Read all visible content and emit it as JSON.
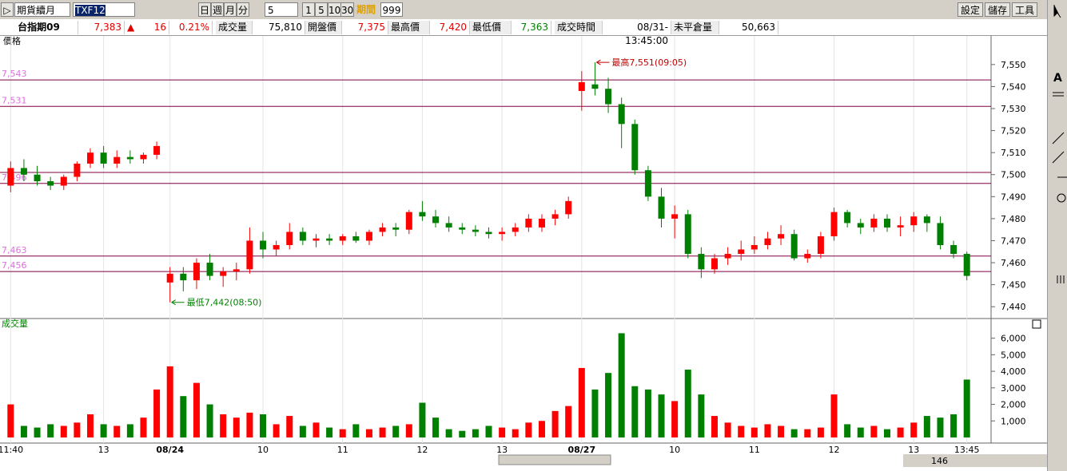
{
  "toolbar": {
    "product": "期貨續月",
    "symbol": "TXF12",
    "periods": [
      "日",
      "週",
      "月",
      "分"
    ],
    "minutes": "5",
    "minute_buttons": [
      "1",
      "5",
      "10",
      "30"
    ],
    "range_label": "期間",
    "range_value": "999",
    "buttons": [
      "設定",
      "儲存",
      "工具"
    ]
  },
  "quote": {
    "name": "台指期09",
    "last": "7,383",
    "arrow": "▲",
    "change": "16",
    "change_pct": "0.21%",
    "fields": [
      [
        "成交量",
        "75,810"
      ],
      [
        "開盤價",
        "7,375"
      ],
      [
        "最高價",
        "7,420"
      ],
      [
        "最低價",
        "7,363"
      ],
      [
        "成交時間",
        "08/31-13:45:00"
      ],
      [
        "未平倉量",
        "50,663"
      ]
    ]
  },
  "footer": {
    "count": "146"
  },
  "chart_data": {
    "type": "candlestick",
    "price_label": "價格",
    "volume_label": "成交量",
    "up_color": "#ff0000",
    "down_color": "#008000",
    "categories": [
      "11:40",
      null,
      null,
      null,
      null,
      null,
      null,
      "13",
      null,
      null,
      null,
      null,
      "08/24",
      null,
      null,
      null,
      null,
      null,
      null,
      "10",
      null,
      null,
      null,
      null,
      null,
      "11",
      null,
      null,
      null,
      null,
      null,
      "12",
      null,
      null,
      null,
      null,
      null,
      "13",
      null,
      null,
      null,
      null,
      null,
      "08/27",
      null,
      null,
      null,
      null,
      null,
      null,
      "10",
      null,
      null,
      null,
      null,
      null,
      "11",
      null,
      null,
      null,
      null,
      null,
      "12",
      null,
      null,
      null,
      null,
      null,
      "13",
      null,
      null,
      null,
      "13:45"
    ],
    "ohlc": [
      [
        7495,
        7506,
        7492,
        7503
      ],
      [
        7503,
        7507,
        7497,
        7500
      ],
      [
        7500,
        7504,
        7495,
        7497
      ],
      [
        7497,
        7499,
        7493,
        7495
      ],
      [
        7495,
        7500,
        7493,
        7499
      ],
      [
        7499,
        7506,
        7497,
        7505
      ],
      [
        7505,
        7512,
        7503,
        7510
      ],
      [
        7510,
        7513,
        7503,
        7505
      ],
      [
        7505,
        7511,
        7503,
        7508
      ],
      [
        7508,
        7511,
        7505,
        7507
      ],
      [
        7507,
        7510,
        7505,
        7509
      ],
      [
        7509,
        7515,
        7507,
        7513
      ],
      [
        7451,
        7458,
        7442,
        7455
      ],
      [
        7455,
        7458,
        7447,
        7452
      ],
      [
        7452,
        7462,
        7448,
        7460
      ],
      [
        7460,
        7464,
        7452,
        7454
      ],
      [
        7454,
        7458,
        7449,
        7456
      ],
      [
        7456,
        7460,
        7452,
        7457
      ],
      [
        7457,
        7476,
        7455,
        7470
      ],
      [
        7470,
        7474,
        7462,
        7466
      ],
      [
        7466,
        7470,
        7463,
        7468
      ],
      [
        7468,
        7478,
        7466,
        7474
      ],
      [
        7474,
        7476,
        7468,
        7470
      ],
      [
        7470,
        7473,
        7467,
        7471
      ],
      [
        7471,
        7473,
        7468,
        7470
      ],
      [
        7470,
        7473,
        7468,
        7472
      ],
      [
        7472,
        7474,
        7469,
        7470
      ],
      [
        7470,
        7475,
        7468,
        7474
      ],
      [
        7474,
        7478,
        7472,
        7476
      ],
      [
        7476,
        7478,
        7472,
        7475
      ],
      [
        7475,
        7484,
        7473,
        7483
      ],
      [
        7483,
        7488,
        7479,
        7481
      ],
      [
        7481,
        7484,
        7476,
        7478
      ],
      [
        7478,
        7481,
        7474,
        7476
      ],
      [
        7476,
        7478,
        7473,
        7475
      ],
      [
        7475,
        7477,
        7472,
        7474
      ],
      [
        7474,
        7476,
        7471,
        7473
      ],
      [
        7473,
        7476,
        7470,
        7474
      ],
      [
        7474,
        7478,
        7472,
        7476
      ],
      [
        7476,
        7482,
        7474,
        7480
      ],
      [
        7476,
        7482,
        7474,
        7480
      ],
      [
        7480,
        7484,
        7477,
        7482
      ],
      [
        7482,
        7490,
        7480,
        7488
      ],
      [
        7538,
        7547,
        7529,
        7542
      ],
      [
        7541,
        7551,
        7536,
        7539
      ],
      [
        7539,
        7544,
        7528,
        7532
      ],
      [
        7532,
        7535,
        7512,
        7523
      ],
      [
        7523,
        7525,
        7500,
        7502
      ],
      [
        7502,
        7504,
        7488,
        7490
      ],
      [
        7490,
        7494,
        7476,
        7480
      ],
      [
        7480,
        7486,
        7471,
        7482
      ],
      [
        7482,
        7484,
        7462,
        7464
      ],
      [
        7464,
        7467,
        7453,
        7457
      ],
      [
        7457,
        7464,
        7455,
        7462
      ],
      [
        7462,
        7467,
        7459,
        7464
      ],
      [
        7464,
        7470,
        7461,
        7466
      ],
      [
        7466,
        7472,
        7464,
        7468
      ],
      [
        7468,
        7474,
        7466,
        7471
      ],
      [
        7471,
        7477,
        7468,
        7473
      ],
      [
        7473,
        7475,
        7461,
        7462
      ],
      [
        7462,
        7466,
        7460,
        7464
      ],
      [
        7464,
        7474,
        7462,
        7472
      ],
      [
        7472,
        7485,
        7470,
        7483
      ],
      [
        7483,
        7484,
        7476,
        7478
      ],
      [
        7478,
        7480,
        7473,
        7476
      ],
      [
        7476,
        7482,
        7474,
        7480
      ],
      [
        7480,
        7482,
        7474,
        7476
      ],
      [
        7476,
        7481,
        7472,
        7477
      ],
      [
        7477,
        7483,
        7474,
        7481
      ],
      [
        7481,
        7482,
        7474,
        7478
      ],
      [
        7478,
        7481,
        7466,
        7468
      ],
      [
        7468,
        7470,
        7462,
        7464
      ],
      [
        7464,
        7465,
        7452,
        7454
      ]
    ],
    "volume": [
      2000,
      700,
      600,
      800,
      700,
      900,
      1400,
      800,
      700,
      800,
      1200,
      2900,
      4300,
      2500,
      3300,
      2000,
      1400,
      1200,
      1500,
      1400,
      800,
      1300,
      700,
      900,
      600,
      500,
      800,
      500,
      600,
      700,
      800,
      2100,
      1200,
      500,
      400,
      500,
      700,
      600,
      500,
      900,
      1000,
      1600,
      1900,
      4200,
      2900,
      3900,
      6300,
      3100,
      2900,
      2600,
      2200,
      4100,
      2600,
      1300,
      900,
      700,
      600,
      800,
      700,
      500,
      500,
      600,
      2600,
      800,
      600,
      700,
      500,
      600,
      900,
      1300,
      1200,
      1400,
      3500
    ],
    "ylim": [
      7435,
      7563
    ],
    "yticks": [
      {
        "value": 7440,
        "label": "7,440"
      },
      {
        "value": 7450,
        "label": "7,450"
      },
      {
        "value": 7460,
        "label": "7,460"
      },
      {
        "value": 7470,
        "label": "7,470"
      },
      {
        "value": 7480,
        "label": "7,480"
      },
      {
        "value": 7490,
        "label": "7,490"
      },
      {
        "value": 7500,
        "label": "7,500"
      },
      {
        "value": 7510,
        "label": "7,510"
      },
      {
        "value": 7520,
        "label": "7,520"
      },
      {
        "value": 7530,
        "label": "7,530"
      },
      {
        "value": 7540,
        "label": "7,540"
      },
      {
        "value": 7550,
        "label": "7,550"
      }
    ],
    "y2lim": [
      0,
      6900
    ],
    "y2ticks": [
      {
        "value": 1000,
        "label": "1,000"
      },
      {
        "value": 2000,
        "label": "2,000"
      },
      {
        "value": 3000,
        "label": "3,000"
      },
      {
        "value": 4000,
        "label": "4,000"
      },
      {
        "value": 5000,
        "label": "5,000"
      },
      {
        "value": 6000,
        "label": "6,000"
      }
    ],
    "reference_lines": [
      {
        "value": 7543,
        "label": "7,543"
      },
      {
        "value": 7531,
        "label": "7,531"
      },
      {
        "value": 7501
      },
      {
        "value": 7496,
        "label": "7,496"
      },
      {
        "value": 7463,
        "label": "7,463"
      },
      {
        "value": 7456,
        "label": "7,456"
      }
    ],
    "ref_color": "#800040",
    "ref_label_color": "#e070e0",
    "annotations": [
      {
        "index": 44,
        "value": 7551,
        "text": "最高7,551(09:05)",
        "color": "#c00000"
      },
      {
        "index": 12,
        "value": 7442,
        "text": "最低7,442(08:50)",
        "color": "#008000"
      }
    ]
  }
}
